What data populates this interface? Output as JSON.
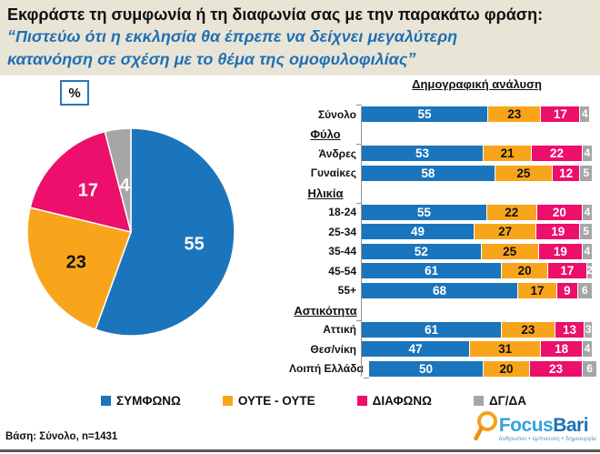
{
  "header": {
    "question": "Εκφράστε τη συμφωνία ή τη διαφωνία σας με την παρακάτω φράση:",
    "statement": "“Πιστεύω ότι η εκκλησία θα έπρεπε να δείχνει μεγαλύτερη κατανόηση σε σχέση με το θέμα της ομοφυλοφιλίας”"
  },
  "percent_label": "%",
  "colors": {
    "agree": "#1B75BC",
    "neither": "#F9A51B",
    "disagree": "#EC0F6B",
    "dk": "#A6A6A6"
  },
  "chart_data": [
    {
      "type": "pie",
      "title": "%",
      "labels": [
        "ΣΥΜΦΩΝΩ",
        "ΟΥΤΕ - ΟΥΤΕ",
        "ΔΙΑΦΩΝΩ",
        "ΔΓ/ΔΑ"
      ],
      "values": [
        55,
        23,
        17,
        4
      ],
      "colors": [
        "#1B75BC",
        "#F9A51B",
        "#EC0F6B",
        "#A6A6A6"
      ],
      "start_angle": "top",
      "direction": "clockwise"
    },
    {
      "type": "bar",
      "stacked": true,
      "orientation": "horizontal",
      "xlim": [
        0,
        100
      ],
      "title": "Δημογραφική ανάλυση",
      "series": [
        "ΣΥΜΦΩΝΩ",
        "ΟΥΤΕ - ΟΥΤΕ",
        "ΔΙΑΦΩΝΩ",
        "ΔΓ/ΔΑ"
      ],
      "colors": [
        "#1B75BC",
        "#F9A51B",
        "#EC0F6B",
        "#A6A6A6"
      ],
      "groups": [
        {
          "section": "",
          "rows": [
            {
              "label": "Σύνολο",
              "values": [
                55,
                23,
                17,
                4
              ]
            }
          ]
        },
        {
          "section": "Φύλο",
          "rows": [
            {
              "label": "Άνδρες",
              "values": [
                53,
                21,
                22,
                4
              ]
            },
            {
              "label": "Γυναίκες",
              "values": [
                58,
                25,
                12,
                5
              ]
            }
          ]
        },
        {
          "section": "Ηλικία",
          "rows": [
            {
              "label": "18-24",
              "values": [
                55,
                22,
                20,
                4
              ]
            },
            {
              "label": "25-34",
              "values": [
                49,
                27,
                19,
                5
              ]
            },
            {
              "label": "35-44",
              "values": [
                52,
                25,
                19,
                4
              ]
            },
            {
              "label": "45-54",
              "values": [
                61,
                20,
                17,
                2
              ]
            },
            {
              "label": "55+",
              "values": [
                68,
                17,
                9,
                6
              ]
            }
          ]
        },
        {
          "section": "Αστικότητα",
          "rows": [
            {
              "label": "Αττική",
              "values": [
                61,
                23,
                13,
                3
              ]
            },
            {
              "label": "Θεσ/νίκη",
              "values": [
                47,
                31,
                18,
                4
              ]
            },
            {
              "label": "Λοιπή Ελλάδα",
              "values": [
                50,
                20,
                23,
                6
              ]
            }
          ]
        }
      ]
    }
  ],
  "legend": [
    {
      "label": "ΣΥΜΦΩΝΩ",
      "color": "#1B75BC"
    },
    {
      "label": "ΟΥΤΕ - ΟΥΤΕ",
      "color": "#F9A51B"
    },
    {
      "label": "ΔΙΑΦΩΝΩ",
      "color": "#EC0F6B"
    },
    {
      "label": "ΔΓ/ΔΑ",
      "color": "#A6A6A6"
    }
  ],
  "footer": {
    "base": "Βάση: Σύνολο, n=1431",
    "logo": {
      "focus": "Focus",
      "bari": "Bari",
      "tagline": "άνθρωποι • έμπνευση • δημιουργία"
    }
  }
}
